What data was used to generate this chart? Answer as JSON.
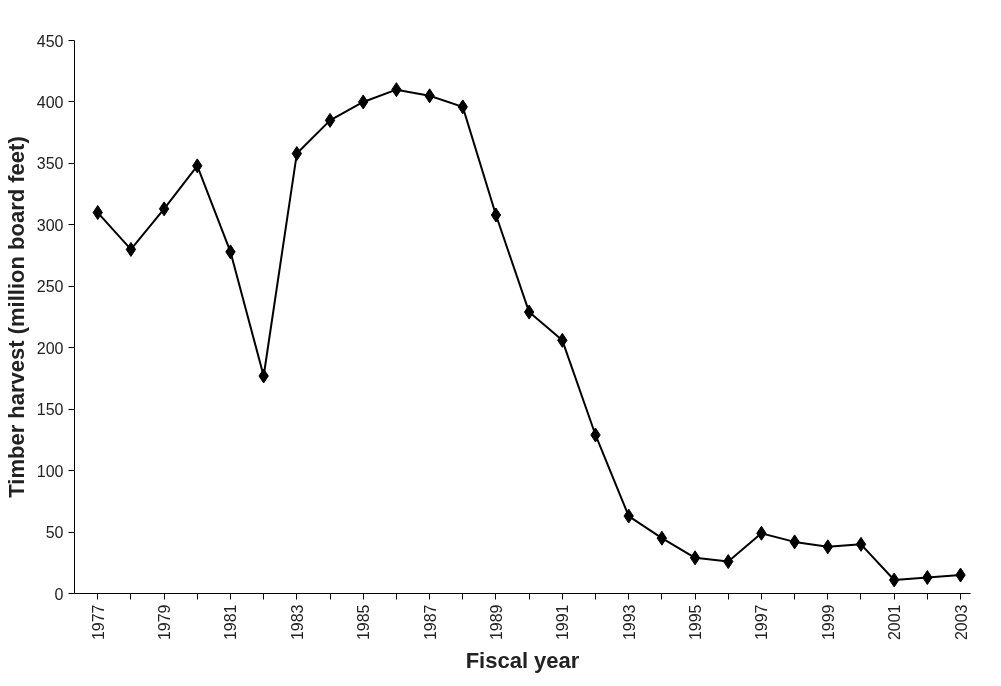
{
  "chart_data": {
    "type": "line",
    "xlabel": "Fiscal year",
    "ylabel": "Timber harvest (million board feet)",
    "x": [
      1977,
      1978,
      1979,
      1980,
      1981,
      1982,
      1983,
      1984,
      1985,
      1986,
      1987,
      1988,
      1989,
      1990,
      1991,
      1992,
      1993,
      1994,
      1995,
      1996,
      1997,
      1998,
      1999,
      2000,
      2001,
      2002,
      2003
    ],
    "series": [
      {
        "color": "#000000",
        "values": [
          310,
          280,
          313,
          348,
          278,
          177,
          358,
          385,
          400,
          410,
          405,
          396,
          308,
          229,
          206,
          129,
          63,
          45,
          29,
          26,
          49,
          42,
          38,
          40,
          11,
          13,
          15
        ]
      }
    ],
    "xlim": [
      1976.3,
      2003.3
    ],
    "xticks": [
      1977,
      {
        "value": 1978,
        "label": null
      },
      1979,
      {
        "value": 1980,
        "label": null
      },
      1981,
      {
        "value": 1982,
        "label": null
      },
      1983,
      {
        "value": 1984,
        "label": null
      },
      1985,
      {
        "value": 1986,
        "label": null
      },
      1987,
      {
        "value": 1988,
        "label": null
      },
      1989,
      {
        "value": 1990,
        "label": null
      },
      1991,
      {
        "value": 1992,
        "label": null
      },
      1993,
      {
        "value": 1994,
        "label": null
      },
      1995,
      {
        "value": 1996,
        "label": null
      },
      1997,
      {
        "value": 1998,
        "label": null
      },
      1999,
      {
        "value": 2000,
        "label": null
      },
      2001,
      {
        "value": 2002,
        "label": null
      },
      2003
    ],
    "ylim": [
      0,
      450
    ],
    "yticks": [
      0,
      50,
      100,
      150,
      200,
      250,
      300,
      350,
      400,
      450
    ],
    "grid": false,
    "marker": "diamond",
    "line_style": "solid"
  }
}
